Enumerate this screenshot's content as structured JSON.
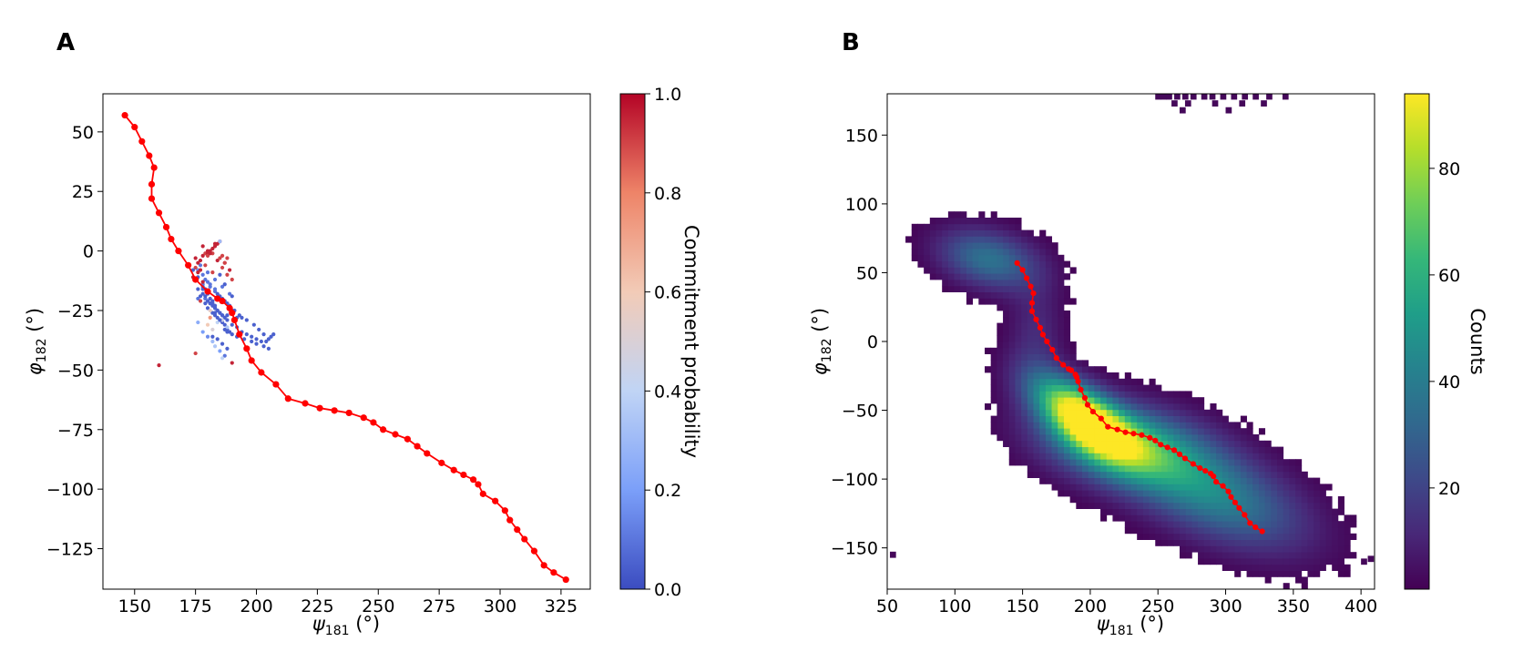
{
  "panels": {
    "a": {
      "label": "A"
    },
    "b": {
      "label": "B"
    }
  },
  "chart_data": [
    {
      "type": "scatter",
      "title": "",
      "xlabel": "ψ181 (°)",
      "ylabel": "φ182 (°)",
      "xlabel_main": "ψ",
      "xlabel_sub": "181",
      "xlabel_unit": " (°)",
      "ylabel_main": "φ",
      "ylabel_sub": "182",
      "ylabel_unit": " (°)",
      "xlim": [
        137,
        337
      ],
      "ylim": [
        -142,
        66
      ],
      "xticks": [
        150,
        175,
        200,
        225,
        250,
        275,
        300,
        325
      ],
      "yticks": [
        50,
        25,
        0,
        -25,
        -50,
        -75,
        -100,
        -125
      ],
      "grid": false,
      "colorbar": {
        "label": "Commitment probability",
        "range": [
          0,
          1
        ],
        "ticks": [
          "0.0",
          "0.2",
          "0.4",
          "0.6",
          "0.8",
          "1.0"
        ],
        "colormap": "coolwarm",
        "colors": [
          "#3b4cc0",
          "#7b9ff9",
          "#c0d4f5",
          "#f2cbb7",
          "#ee8468",
          "#b40426"
        ]
      },
      "path_color": "#ff0000",
      "path": {
        "x": [
          146,
          150,
          153,
          156,
          158,
          157,
          157,
          160,
          163,
          165,
          168,
          172,
          175,
          180,
          184,
          186,
          189,
          190,
          191,
          193,
          196,
          198,
          202,
          208,
          213,
          220,
          226,
          232,
          238,
          244,
          248,
          252,
          257,
          262,
          266,
          270,
          276,
          281,
          285,
          289,
          291,
          293,
          298,
          302,
          304,
          307,
          310,
          314,
          318,
          322,
          327
        ],
        "y": [
          57,
          52,
          46,
          40,
          35,
          28,
          22,
          16,
          10,
          5,
          0,
          -6,
          -12,
          -17,
          -20,
          -21,
          -24,
          -26,
          -29,
          -35,
          -41,
          -46,
          -51,
          -56,
          -62,
          -64,
          -66,
          -67,
          -68,
          -70,
          -72,
          -75,
          -77,
          -79,
          -82,
          -85,
          -89,
          -92,
          -94,
          -96,
          -98,
          -102,
          -105,
          -109,
          -113,
          -117,
          -121,
          -126,
          -132,
          -135,
          -138
        ]
      },
      "points": {
        "x": [
          176,
          178,
          179,
          180,
          181,
          182,
          183,
          184,
          185,
          186,
          187,
          178,
          179,
          180,
          181,
          182,
          183,
          184,
          185,
          186,
          188,
          190,
          192,
          194,
          196,
          198,
          200,
          202,
          204,
          205,
          206,
          207,
          176,
          177,
          179,
          180,
          182,
          183,
          184,
          185,
          186,
          187,
          188,
          189,
          190,
          192,
          195,
          198,
          200,
          203,
          205,
          180,
          181,
          183,
          185,
          187,
          189,
          191,
          193,
          194,
          196,
          199,
          201,
          203,
          176,
          178,
          179,
          181,
          183,
          184,
          186,
          188,
          190,
          192,
          177,
          180,
          183,
          186,
          189,
          175,
          176,
          177,
          178,
          179,
          180,
          181,
          182,
          183,
          184,
          185,
          186,
          187,
          188,
          175,
          177,
          179,
          182,
          184,
          186,
          188,
          190,
          174,
          176,
          178,
          180,
          182,
          185,
          187,
          189,
          178,
          180,
          181,
          183,
          185,
          180,
          181,
          182,
          184,
          186,
          188,
          176,
          178,
          180,
          182,
          183,
          185,
          187,
          186,
          190,
          160,
          175,
          177,
          179,
          181,
          188,
          190,
          174,
          176,
          178,
          180,
          182,
          183,
          185,
          187,
          178,
          179,
          181,
          183,
          185,
          187,
          188,
          182,
          184,
          186,
          188
        ],
        "y": [
          -16,
          -18,
          -20,
          -21,
          -22,
          -23,
          -24,
          -25,
          -26,
          -27,
          -28,
          -14,
          -16,
          -18,
          -20,
          -22,
          -24,
          -25,
          -26,
          -27,
          -29,
          -31,
          -32,
          -34,
          -35,
          -36,
          -37,
          -38,
          -38,
          -37,
          -36,
          -35,
          -20,
          -19,
          -22,
          -24,
          -26,
          -27,
          -28,
          -29,
          -30,
          -31,
          -33,
          -34,
          -35,
          -36,
          -37,
          -38,
          -39,
          -40,
          -41,
          -13,
          -15,
          -17,
          -19,
          -21,
          -23,
          -25,
          -27,
          -28,
          -29,
          -31,
          -33,
          -35,
          -8,
          -10,
          -12,
          -14,
          -16,
          -18,
          -20,
          -22,
          -25,
          -28,
          -6,
          -9,
          -12,
          -15,
          -18,
          -3,
          -5,
          -4,
          -2,
          -1,
          -1,
          0,
          1,
          2,
          3,
          4,
          -2,
          -5,
          -3,
          -7,
          -8,
          -6,
          -9,
          -4,
          -7,
          -10,
          -12,
          -11,
          -9,
          -13,
          -2,
          -1,
          -3,
          -5,
          -8,
          2,
          0,
          -1,
          3,
          4,
          -31,
          -28,
          -33,
          -30,
          -29,
          -32,
          -30,
          -34,
          -36,
          -38,
          -40,
          -42,
          -44,
          -45,
          -47,
          -48,
          -43,
          -21,
          -20,
          -25,
          -27,
          -19,
          -8,
          -11,
          -15,
          -17,
          -21,
          -23,
          -10,
          -14,
          -16,
          -19,
          -22,
          -26,
          -29,
          -33,
          -34,
          -36,
          -37,
          -39,
          -41
        ],
        "p": [
          0.05,
          0.05,
          0.05,
          0.05,
          0.05,
          0.05,
          0.05,
          0.05,
          0.05,
          0.05,
          0.05,
          0.1,
          0.05,
          0.05,
          0.05,
          0.05,
          0.05,
          0.05,
          0.05,
          0.05,
          0.05,
          0.05,
          0.05,
          0.05,
          0.05,
          0.05,
          0.05,
          0.05,
          0.05,
          0.05,
          0.05,
          0.05,
          0.1,
          0.05,
          0.05,
          0.05,
          0.05,
          0.05,
          0.05,
          0.05,
          0.05,
          0.05,
          0.05,
          0.05,
          0.05,
          0.05,
          0.05,
          0.05,
          0.05,
          0.05,
          0.05,
          0.1,
          0.1,
          0.1,
          0.05,
          0.05,
          0.05,
          0.05,
          0.05,
          0.05,
          0.05,
          0.05,
          0.05,
          0.05,
          0.15,
          0.1,
          0.1,
          0.1,
          0.1,
          0.05,
          0.05,
          0.05,
          0.05,
          0.05,
          0.1,
          0.1,
          0.1,
          0.1,
          0.1,
          0.95,
          0.95,
          0.95,
          0.95,
          0.9,
          0.95,
          0.95,
          0.95,
          0.95,
          0.95,
          0.95,
          0.9,
          0.95,
          0.9,
          0.9,
          0.95,
          0.9,
          0.9,
          0.95,
          0.9,
          0.9,
          0.9,
          0.95,
          0.95,
          0.95,
          0.9,
          0.9,
          0.9,
          0.9,
          0.95,
          0.95,
          0.95,
          0.95,
          0.95,
          0.3,
          0.6,
          0.75,
          0.5,
          0.4,
          0.45,
          0.35,
          0.25,
          0.2,
          0.15,
          0.3,
          0.35,
          0.2,
          0.1,
          0.4,
          0.95,
          0.95,
          0.9,
          0.9,
          0.1,
          0.55,
          0.05,
          0.05,
          0.05,
          0.05,
          0.05,
          0.2,
          0.05,
          0.05,
          0.05,
          0.05,
          0.05,
          0.05,
          0.05,
          0.05,
          0.05,
          0.05,
          0.05,
          0.05,
          0.05,
          0.05,
          0.05
        ]
      }
    },
    {
      "type": "heatmap",
      "title": "",
      "xlabel": "ψ181 (°)",
      "ylabel": "φ182 (°)",
      "xlabel_main": "ψ",
      "xlabel_sub": "181",
      "xlabel_unit": " (°)",
      "ylabel_main": "φ",
      "ylabel_sub": "182",
      "ylabel_unit": " (°)",
      "xlim": [
        50,
        410
      ],
      "ylim": [
        -180,
        180
      ],
      "xticks": [
        50,
        100,
        150,
        200,
        250,
        300,
        350,
        400
      ],
      "yticks": [
        150,
        100,
        50,
        0,
        -50,
        -100,
        -150
      ],
      "grid": false,
      "colorbar": {
        "label": "Counts",
        "range": [
          1,
          94
        ],
        "ticks": [
          "20",
          "40",
          "60",
          "80"
        ],
        "tick_values": [
          20,
          40,
          60,
          80
        ],
        "colormap": "viridis",
        "colors": [
          "#440154",
          "#482878",
          "#3e4989",
          "#31688e",
          "#26828e",
          "#1f9e89",
          "#35b779",
          "#6ece58",
          "#b5de2b",
          "#fde725"
        ]
      },
      "density_components": [
        {
          "x": 125,
          "y": 60,
          "sx": 25,
          "sy": 15,
          "rho": -0.3,
          "amp": 36
        },
        {
          "x": 195,
          "y": -55,
          "sx": 25,
          "sy": 20,
          "rho": -0.65,
          "amp": 94
        },
        {
          "x": 225,
          "y": -75,
          "sx": 40,
          "sy": 20,
          "rho": -0.3,
          "amp": 55
        },
        {
          "x": 290,
          "y": -110,
          "sx": 45,
          "sy": 27,
          "rho": -0.55,
          "amp": 42
        },
        {
          "x": 160,
          "y": 5,
          "sx": 14,
          "sy": 28,
          "rho": 0,
          "amp": 12
        }
      ],
      "path_color": "#ff0000",
      "path": {
        "x": [
          146,
          150,
          153,
          156,
          158,
          157,
          157,
          160,
          163,
          165,
          168,
          172,
          175,
          180,
          184,
          186,
          189,
          190,
          191,
          193,
          196,
          198,
          202,
          208,
          213,
          220,
          226,
          232,
          238,
          244,
          248,
          252,
          257,
          262,
          266,
          270,
          276,
          281,
          285,
          289,
          291,
          293,
          298,
          302,
          304,
          307,
          310,
          314,
          318,
          322,
          327
        ],
        "y": [
          57,
          52,
          46,
          40,
          35,
          28,
          22,
          16,
          10,
          5,
          0,
          -6,
          -12,
          -17,
          -20,
          -21,
          -24,
          -26,
          -29,
          -35,
          -41,
          -46,
          -51,
          -56,
          -62,
          -64,
          -66,
          -67,
          -68,
          -70,
          -72,
          -75,
          -77,
          -79,
          -82,
          -85,
          -89,
          -92,
          -94,
          -96,
          -98,
          -102,
          -105,
          -109,
          -113,
          -117,
          -121,
          -126,
          -132,
          -135,
          -138
        ]
      }
    }
  ]
}
